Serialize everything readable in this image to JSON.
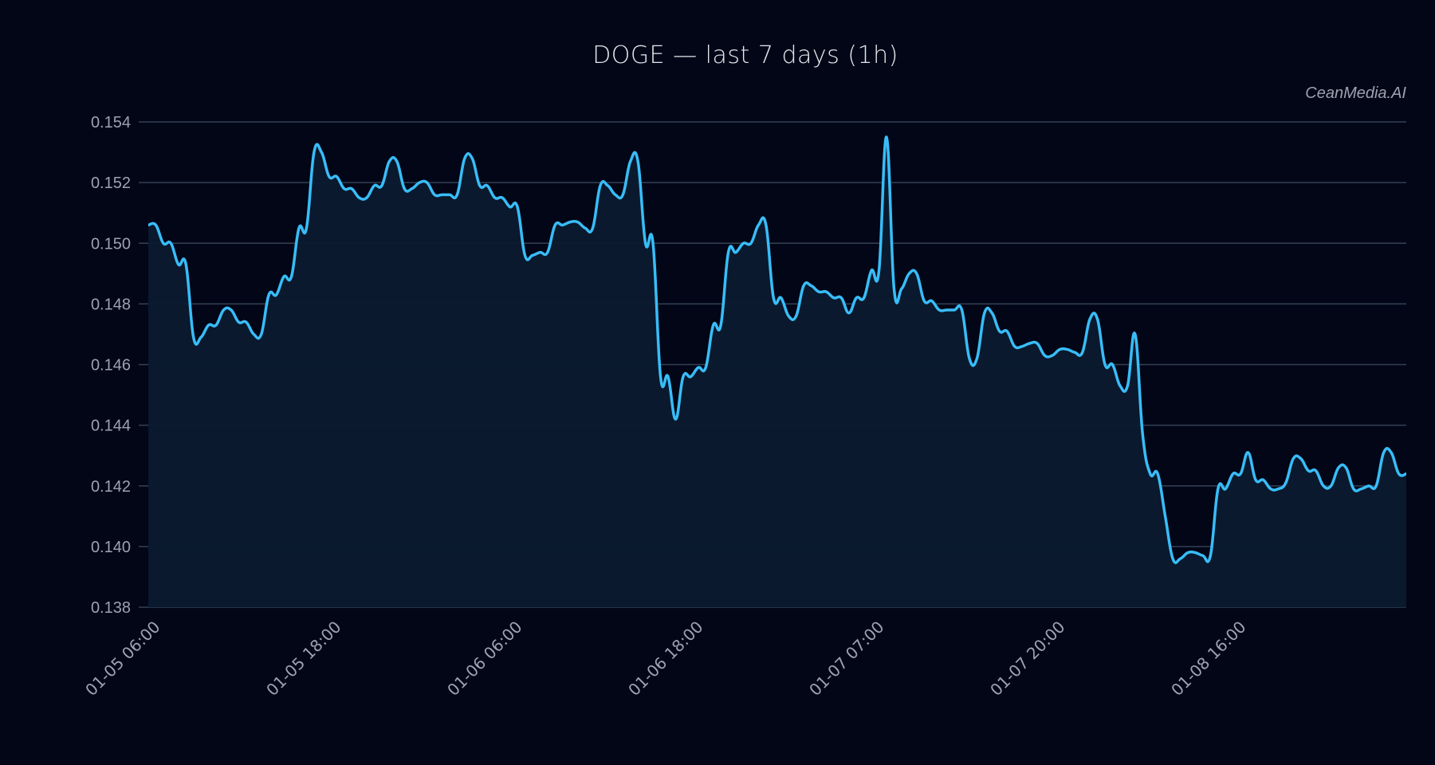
{
  "chart_data": {
    "type": "area",
    "title": "DOGE — last 7 days (1h)",
    "watermark": "CeanMedia.AI",
    "xlabel": "",
    "ylabel": "",
    "ylim": [
      0.138,
      0.154
    ],
    "grid": true,
    "legend": null,
    "y_ticks": [
      "0.154",
      "0.152",
      "0.150",
      "0.148",
      "0.146",
      "0.144",
      "0.142",
      "0.140",
      "0.138"
    ],
    "x_ticks": [
      "01-05 06:00",
      "01-05 18:00",
      "01-06 06:00",
      "01-06 18:00",
      "01-07 07:00",
      "01-07 20:00",
      "01-08 16:00"
    ],
    "line_color": "#38bdf8",
    "fill_color": "#0b1a2e",
    "series": [
      {
        "name": "DOGE",
        "values": [
          0.1506,
          0.1506,
          0.15,
          0.15,
          0.1493,
          0.1493,
          0.1469,
          0.1469,
          0.1473,
          0.1473,
          0.1478,
          0.1478,
          0.1474,
          0.1474,
          0.147,
          0.147,
          0.1483,
          0.1483,
          0.1489,
          0.1489,
          0.1505,
          0.1505,
          0.153,
          0.153,
          0.1522,
          0.1522,
          0.1518,
          0.1518,
          0.1515,
          0.1515,
          0.1519,
          0.1519,
          0.1527,
          0.1527,
          0.1518,
          0.1518,
          0.152,
          0.152,
          0.1516,
          0.1516,
          0.1516,
          0.1516,
          0.1528,
          0.1528,
          0.1519,
          0.1519,
          0.1515,
          0.1515,
          0.1512,
          0.1512,
          0.1496,
          0.1496,
          0.1497,
          0.1497,
          0.1506,
          0.1506,
          0.1507,
          0.1507,
          0.1505,
          0.1505,
          0.1519,
          0.1519,
          0.1516,
          0.1516,
          0.1527,
          0.1527,
          0.15,
          0.15,
          0.1456,
          0.1456,
          0.1442,
          0.1456,
          0.1456,
          0.1459,
          0.1459,
          0.1473,
          0.1473,
          0.1497,
          0.1497,
          0.15,
          0.15,
          0.1506,
          0.1506,
          0.1482,
          0.1482,
          0.1476,
          0.1476,
          0.1486,
          0.1486,
          0.1484,
          0.1484,
          0.1482,
          0.1482,
          0.1477,
          0.1482,
          0.1482,
          0.1491,
          0.1491,
          0.1535,
          0.1485,
          0.1485,
          0.149,
          0.149,
          0.1481,
          0.1481,
          0.1478,
          0.1478,
          0.1478,
          0.1478,
          0.1462,
          0.1462,
          0.1477,
          0.1477,
          0.1471,
          0.1471,
          0.1466,
          0.1466,
          0.1467,
          0.1467,
          0.1463,
          0.1463,
          0.1465,
          0.1465,
          0.1464,
          0.1464,
          0.1475,
          0.1475,
          0.146,
          0.146,
          0.1453,
          0.1453,
          0.147,
          0.1437,
          0.1424,
          0.1424,
          0.141,
          0.1396,
          0.1396,
          0.1398,
          0.1398,
          0.1397,
          0.1397,
          0.1419,
          0.1419,
          0.1424,
          0.1424,
          0.1431,
          0.1422,
          0.1422,
          0.1419,
          0.1419,
          0.1421,
          0.1429,
          0.1429,
          0.1425,
          0.1425,
          0.142,
          0.142,
          0.1426,
          0.1426,
          0.1419,
          0.1419,
          0.142,
          0.142,
          0.1431,
          0.1431,
          0.1424,
          0.1424
        ]
      }
    ]
  }
}
